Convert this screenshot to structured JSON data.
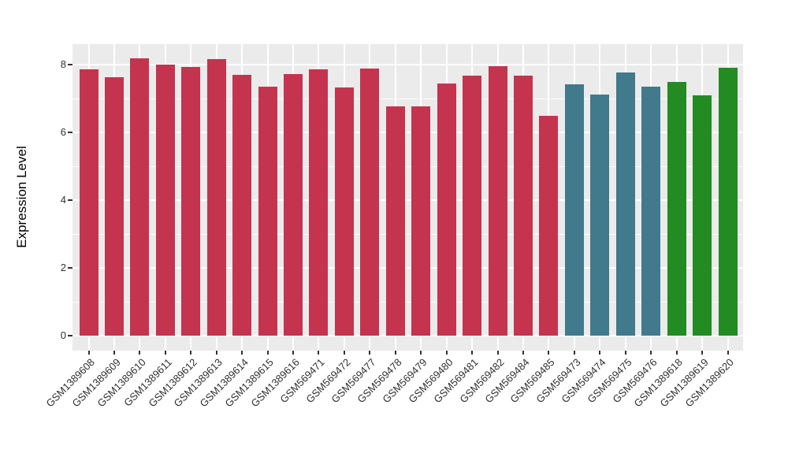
{
  "chart_data": {
    "type": "bar",
    "title": "",
    "xlabel": "",
    "ylabel": "Expression Level",
    "ylim": [
      0,
      8.6
    ],
    "yticks": [
      0,
      2,
      4,
      6,
      8
    ],
    "yticks_minor": [
      1,
      3,
      5,
      7
    ],
    "grid": true,
    "legend_position": "none",
    "panel_background": "#EBEBEB",
    "gridline_color": "#FFFFFF",
    "axis_text_color": "#303030",
    "tick_mark_color": "#333333",
    "palette": {
      "group1": "#C4344F",
      "group2": "#407A8C",
      "group3": "#228B22"
    },
    "categories": [
      "GSM1389608",
      "GSM1389609",
      "GSM1389610",
      "GSM1389611",
      "GSM1389612",
      "GSM1389613",
      "GSM1389614",
      "GSM1389615",
      "GSM1389616",
      "GSM569471",
      "GSM569472",
      "GSM569477",
      "GSM569478",
      "GSM569479",
      "GSM569480",
      "GSM569481",
      "GSM569482",
      "GSM569484",
      "GSM569485",
      "GSM569473",
      "GSM569474",
      "GSM569475",
      "GSM569476",
      "GSM1389618",
      "GSM1389619",
      "GSM1389620"
    ],
    "values": [
      7.87,
      7.63,
      8.19,
      8.0,
      7.93,
      8.16,
      7.7,
      7.36,
      7.72,
      7.85,
      7.33,
      7.88,
      6.77,
      6.77,
      7.45,
      7.67,
      7.95,
      7.68,
      6.48,
      7.42,
      7.11,
      7.76,
      7.35,
      7.5,
      7.09,
      7.9
    ],
    "colors": [
      "#C4344F",
      "#C4344F",
      "#C4344F",
      "#C4344F",
      "#C4344F",
      "#C4344F",
      "#C4344F",
      "#C4344F",
      "#C4344F",
      "#C4344F",
      "#C4344F",
      "#C4344F",
      "#C4344F",
      "#C4344F",
      "#C4344F",
      "#C4344F",
      "#C4344F",
      "#C4344F",
      "#C4344F",
      "#407A8C",
      "#407A8C",
      "#407A8C",
      "#407A8C",
      "#228B22",
      "#228B22",
      "#228B22"
    ]
  }
}
